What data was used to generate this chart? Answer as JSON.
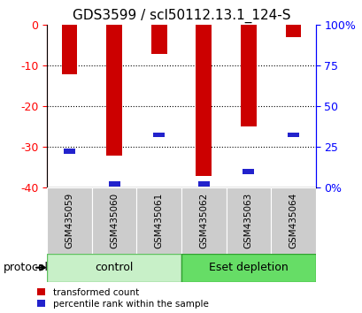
{
  "title": "GDS3599 / scl50112.13.1_124-S",
  "categories": [
    "GSM435059",
    "GSM435060",
    "GSM435061",
    "GSM435062",
    "GSM435063",
    "GSM435064"
  ],
  "red_tops": [
    -12,
    -32,
    -7,
    -37,
    -25,
    -3
  ],
  "blue_positions": [
    -31,
    -39,
    -27,
    -39,
    -36,
    -27
  ],
  "ylim_left": [
    -40,
    0
  ],
  "ylim_right": [
    0,
    100
  ],
  "yticks_left": [
    0,
    -10,
    -20,
    -30,
    -40
  ],
  "ytick_labels_left": [
    "0",
    "-10",
    "-20",
    "-30",
    "-40"
  ],
  "ytick_labels_right": [
    "0%",
    "25",
    "50",
    "75",
    "100%"
  ],
  "yticks_right": [
    0,
    25,
    50,
    75,
    100
  ],
  "bar_width": 0.35,
  "red_color": "#cc0000",
  "blue_color": "#2222cc",
  "tick_bg": "#cccccc",
  "control_color_light": "#c8f0c8",
  "control_color_border": "#60c060",
  "eset_color_light": "#66dd66",
  "eset_color_border": "#30a030",
  "legend_red": "transformed count",
  "legend_blue": "percentile rank within the sample",
  "title_fontsize": 11,
  "axis_fontsize": 9,
  "label_fontsize": 7.5
}
